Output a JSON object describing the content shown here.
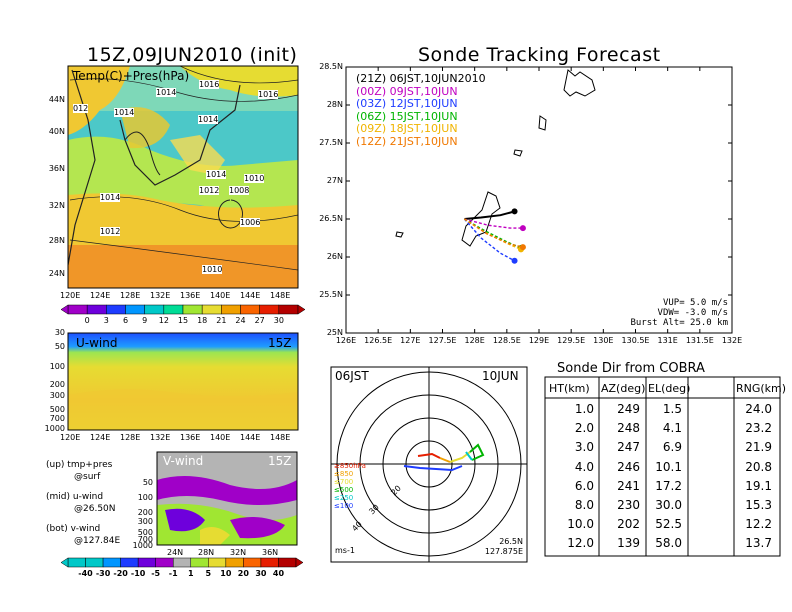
{
  "left_panel": {
    "title": "15Z,09JUN2010 (init)",
    "map_label": "Temp(C)+Pres(hPa)",
    "lat_ticks": [
      "44N",
      "40N",
      "36N",
      "32N",
      "28N",
      "24N"
    ],
    "lon_ticks": [
      "120E",
      "124E",
      "128E",
      "132E",
      "136E",
      "140E",
      "144E",
      "148E"
    ],
    "pressure_labels": [
      "012",
      "1014",
      "1016",
      "1016",
      "1014",
      "1014",
      "1014",
      "1012",
      "1008",
      "1010",
      "1014",
      "1012",
      "1006",
      "1010"
    ],
    "temp_colorbar": {
      "labels": [
        "0",
        "3",
        "6",
        "9",
        "12",
        "15",
        "18",
        "21",
        "24",
        "27",
        "30"
      ],
      "colors": [
        "#a000c8",
        "#6e00dc",
        "#1e3cff",
        "#0096ff",
        "#00c8c8",
        "#00dc96",
        "#a0e632",
        "#e6dc32",
        "#f0a000",
        "#fa6400",
        "#e61e00",
        "#b40000"
      ]
    }
  },
  "uwind_panel": {
    "label": "U-wind",
    "time": "15Z",
    "y_ticks": [
      "30",
      "50",
      "100",
      "200",
      "300",
      "500",
      "700",
      "1000"
    ],
    "x_ticks": [
      "120E",
      "124E",
      "128E",
      "132E",
      "136E",
      "140E",
      "144E",
      "148E"
    ]
  },
  "vwind_panel": {
    "label": "V-wind",
    "time": "15Z",
    "y_ticks": [
      "50",
      "100",
      "200",
      "300",
      "500",
      "700",
      "1000"
    ],
    "x_ticks": [
      "24N",
      "28N",
      "32N",
      "36N"
    ]
  },
  "legend_notes": {
    "up1": "(up) tmp+pres",
    "up2": "@surf",
    "mid1": "(mid) u-wind",
    "mid2": "@26.50N",
    "bot1": "(bot) v-wind",
    "bot2": "@127.84E"
  },
  "wind_colorbar": {
    "labels": [
      "-40",
      "-30",
      "-20",
      "-10",
      "-5",
      "-1",
      "1",
      "5",
      "10",
      "20",
      "30",
      "40"
    ],
    "colors": [
      "#00c8c8",
      "#0096ff",
      "#1e3cff",
      "#6e00dc",
      "#a000c8",
      "#b4b4b4",
      "#a0e632",
      "#e6dc32",
      "#f0a000",
      "#fa6400",
      "#e61e00",
      "#b40000"
    ]
  },
  "tracking": {
    "title": "Sonde Tracking Forecast",
    "lat_ticks": [
      "28.5N",
      "28N",
      "27.5N",
      "27N",
      "26.5N",
      "26N",
      "25.5N",
      "25N"
    ],
    "lon_ticks": [
      "126E",
      "126.5E",
      "127E",
      "127.5E",
      "128E",
      "128.5E",
      "129E",
      "129.5E",
      "130E",
      "130.5E",
      "131E",
      "131.5E",
      "132E"
    ],
    "legend": [
      {
        "text": "(21Z)  06JST,10JUN2010",
        "color": "#000000"
      },
      {
        "text": "(00Z)  09JST,10JUN",
        "color": "#c000c0"
      },
      {
        "text": "(03Z)  12JST,10JUN",
        "color": "#1e3cff"
      },
      {
        "text": "(06Z)  15JST,10JUN",
        "color": "#00b400"
      },
      {
        "text": "(09Z)  18JST,10JUN",
        "color": "#f0b400"
      },
      {
        "text": "(12Z)  21JST,10JUN",
        "color": "#f07800"
      }
    ],
    "vup": "VUP=  5.0  m/s",
    "vdw": "VDW=  -3.0  m/s",
    "burst": "Burst Alt=  25.0  km",
    "chart_data": {
      "type": "line",
      "xlim": [
        126,
        132
      ],
      "ylim": [
        25,
        28.5
      ],
      "series": [
        {
          "name": "(21Z)  06JST,10JUN2010",
          "color": "#000000",
          "x": [
            127.84,
            128.1,
            128.4,
            128.62
          ],
          "y": [
            26.5,
            26.52,
            26.55,
            26.6
          ]
        },
        {
          "name": "(00Z)  09JST,10JUN",
          "color": "#c000c0",
          "x": [
            127.84,
            128.2,
            128.55,
            128.75
          ],
          "y": [
            26.5,
            26.42,
            26.38,
            26.38
          ]
        },
        {
          "name": "(03Z)  12JST,10JUN",
          "color": "#1e3cff",
          "x": [
            127.84,
            128.1,
            128.4,
            128.62
          ],
          "y": [
            26.5,
            26.25,
            26.05,
            25.95
          ]
        },
        {
          "name": "(06Z)  15JST,10JUN",
          "color": "#00b400",
          "x": [
            127.84,
            128.15,
            128.5,
            128.72
          ],
          "y": [
            26.5,
            26.35,
            26.2,
            26.12
          ]
        },
        {
          "name": "(09Z)  18JST,10JUN",
          "color": "#f0b400",
          "x": [
            127.84,
            128.15,
            128.5,
            128.72
          ],
          "y": [
            26.5,
            26.33,
            26.18,
            26.1
          ]
        },
        {
          "name": "(12Z)  21JST,10JUN",
          "color": "#f07800",
          "x": [
            127.84,
            128.2,
            128.55,
            128.75
          ],
          "y": [
            26.5,
            26.3,
            26.17,
            26.13
          ]
        }
      ]
    }
  },
  "polar": {
    "time": "06JST",
    "date": "10JUN",
    "level_labels": [
      "≥850hPa",
      "≤850",
      "≤700",
      "≤500",
      "≤250",
      "≤100"
    ],
    "level_colors": [
      "#e61e00",
      "#f0a000",
      "#e6dc32",
      "#00b400",
      "#00c8c8",
      "#1e3cff"
    ],
    "ring_labels": [
      "20",
      "30",
      "40"
    ],
    "unit": "ms-1",
    "loc1": "26.5N",
    "loc2": "127.875E"
  },
  "sonde_table": {
    "title": "Sonde  Dir  from  COBRA",
    "headers": [
      "HT(km)",
      "AZ(deg)",
      "EL(deg)",
      "RNG(km)"
    ],
    "rows": [
      [
        "1.0",
        "249",
        "1.5",
        "24.0"
      ],
      [
        "2.0",
        "248",
        "4.1",
        "23.2"
      ],
      [
        "3.0",
        "247",
        "6.9",
        "21.9"
      ],
      [
        "4.0",
        "246",
        "10.1",
        "20.8"
      ],
      [
        "6.0",
        "241",
        "17.2",
        "19.1"
      ],
      [
        "8.0",
        "230",
        "30.0",
        "15.3"
      ],
      [
        "10.0",
        "202",
        "52.5",
        "12.2"
      ],
      [
        "12.0",
        "139",
        "58.0",
        "13.7"
      ]
    ]
  }
}
